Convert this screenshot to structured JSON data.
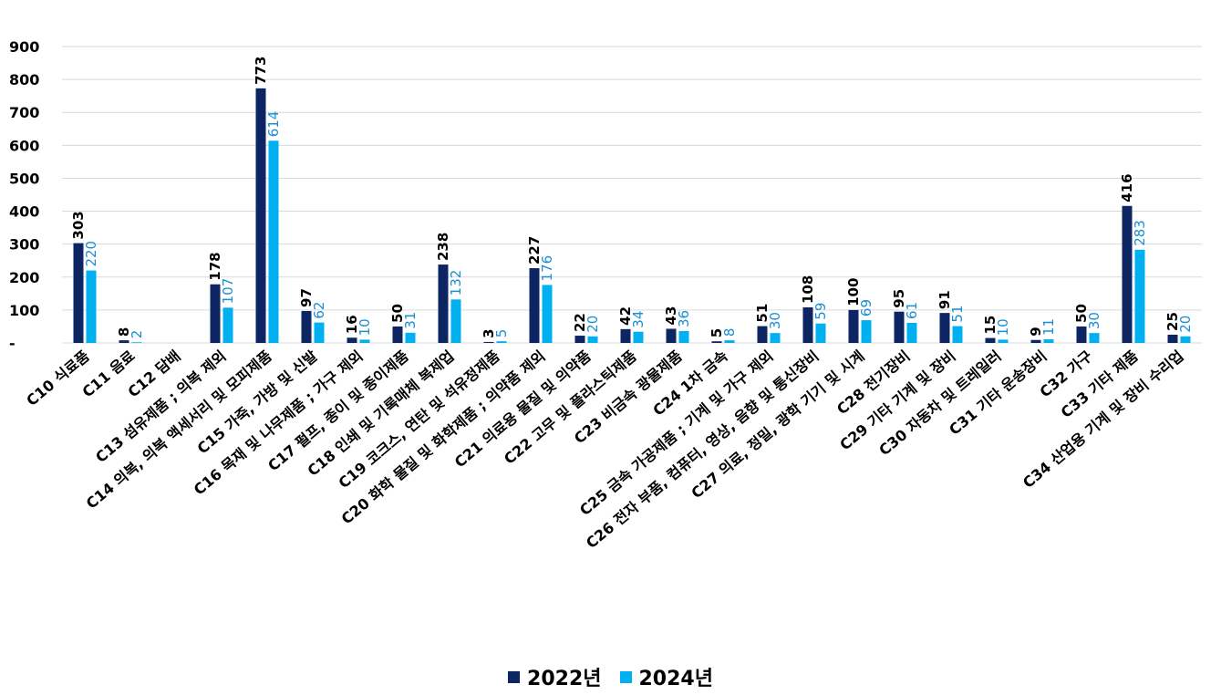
{
  "chart_data": {
    "type": "bar",
    "title": "",
    "xlabel": "",
    "ylabel": "",
    "ylim": [
      0,
      900
    ],
    "yticks": [
      0,
      100,
      200,
      300,
      400,
      500,
      600,
      700,
      800,
      900
    ],
    "ytick_labels": [
      "-",
      "100",
      "200",
      "300",
      "400",
      "500",
      "600",
      "700",
      "800",
      "900"
    ],
    "grid": true,
    "legend_position": "bottom-center",
    "categories": [
      "C10 식료품",
      "C11 음료",
      "C12 담배",
      "C13 섬유제품 ; 의복 제외",
      "C14 의복, 의복 액세서리 및 모피제품",
      "C15 가죽, 가방 및 신발",
      "C16 목재 및 나무제품 ; 가구 제외",
      "C17 펄프, 종이 및 종이제품",
      "C18 인쇄 및 기록매체 복제업",
      "C19 코크스, 연탄 및 석유정제품",
      "C20 화학 물질 및 화학제품 ; 의약품 제외",
      "C21 의료용 물질 및 의약품",
      "C22 고무 및 플라스틱제품",
      "C23 비금속 광물제품",
      "C24 1차 금속",
      "C25 금속 가공제품 ; 기계 및 가구 제외",
      "C26 전자 부품, 컴퓨터, 영상, 음향 및 통신장비",
      "C27 의료, 정밀, 광학 기기 및 시계",
      "C28 전기장비",
      "C29 기타 기계 및 장비",
      "C30 자동차 및 트레일러",
      "C31 기타 운송장비",
      "C32 가구",
      "C33 기타 제품",
      "C34 산업용 기계 및 장비 수리업"
    ],
    "series": [
      {
        "name": "2022년",
        "color": "#0d2562",
        "values": [
          303,
          8,
          null,
          178,
          773,
          97,
          16,
          50,
          238,
          3,
          227,
          22,
          42,
          43,
          5,
          51,
          108,
          100,
          95,
          91,
          15,
          9,
          50,
          416,
          25
        ],
        "labels": [
          "303",
          "8",
          "",
          "178",
          "773",
          "97",
          "16",
          "50",
          "238",
          "3",
          "227",
          "22",
          "42",
          "43",
          "5",
          "51",
          "108",
          "100",
          "95",
          "91",
          "15",
          "9",
          "50",
          "416",
          "25"
        ]
      },
      {
        "name": "2024년",
        "color": "#00b0f0",
        "values": [
          220,
          2,
          null,
          107,
          614,
          62,
          10,
          31,
          132,
          5,
          176,
          20,
          34,
          36,
          8,
          30,
          59,
          69,
          61,
          51,
          10,
          11,
          30,
          283,
          20
        ],
        "labels": [
          "220",
          "2",
          "",
          "107",
          "614",
          "62",
          "10",
          "31",
          "132",
          "5",
          "176",
          "20",
          "34",
          "36",
          "8",
          "30",
          "59",
          "69",
          "61",
          "51",
          "10",
          "11",
          "30",
          "283",
          "20"
        ]
      }
    ]
  }
}
